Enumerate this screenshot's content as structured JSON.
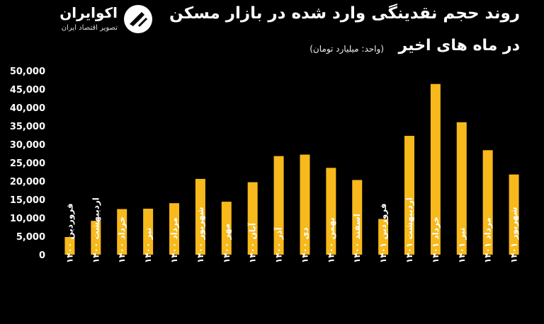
{
  "brand": {
    "name": "اکوایران",
    "tagline": "تصویر اقتصاد ایران",
    "logo_icon": "ecoiran-logo-icon"
  },
  "chart_data": {
    "type": "bar",
    "title": "روند حجم نقدینگی وارد شده در بازار مسکن",
    "title_line2": "در ماه های اخیر",
    "subtitle": "(واحد: میلیارد تومان)",
    "categories": [
      "فروردین ۱۴۰۰",
      "اردیبهشت ۱۴۰۰",
      "خرداد ۱۴۰۰",
      "تیر ۱۴۰۰",
      "مرداد ۱۴۰۰",
      "شهریور ۱۴۰۰",
      "مهر ۱۴۰۰",
      "آبان ۱۴۰۰",
      "آذر ۱۴۰۰",
      "دی ۱۴۰۰",
      "بهمن ۱۴۰۰",
      "اسفند ۱۴۰۰",
      "فروردین ۱۴۰۱",
      "اردیبهشت ۱۴۰۱",
      "خرداد ۱۴۰۱",
      "تیر ۱۴۰۱",
      "مرداد ۱۴۰۱",
      "شهریور ۱۴۰۱"
    ],
    "values": [
      4800,
      9200,
      12400,
      12500,
      14000,
      20600,
      14400,
      19700,
      26800,
      27200,
      23600,
      20300,
      9700,
      32300,
      46400,
      36000,
      28400,
      21800
    ],
    "ylim": [
      0,
      50000
    ],
    "yticks": [
      0,
      5000,
      10000,
      15000,
      20000,
      25000,
      30000,
      35000,
      40000,
      45000,
      50000
    ],
    "ytick_labels": [
      "0",
      "5,000",
      "10,000",
      "15,000",
      "20,000",
      "25,000",
      "30,000",
      "35,000",
      "40,000",
      "45,000",
      "50,000"
    ],
    "xlabel": "",
    "ylabel": "",
    "grid": false,
    "legend": "none",
    "bar_color": "#f7b91b",
    "background": "#000000"
  }
}
